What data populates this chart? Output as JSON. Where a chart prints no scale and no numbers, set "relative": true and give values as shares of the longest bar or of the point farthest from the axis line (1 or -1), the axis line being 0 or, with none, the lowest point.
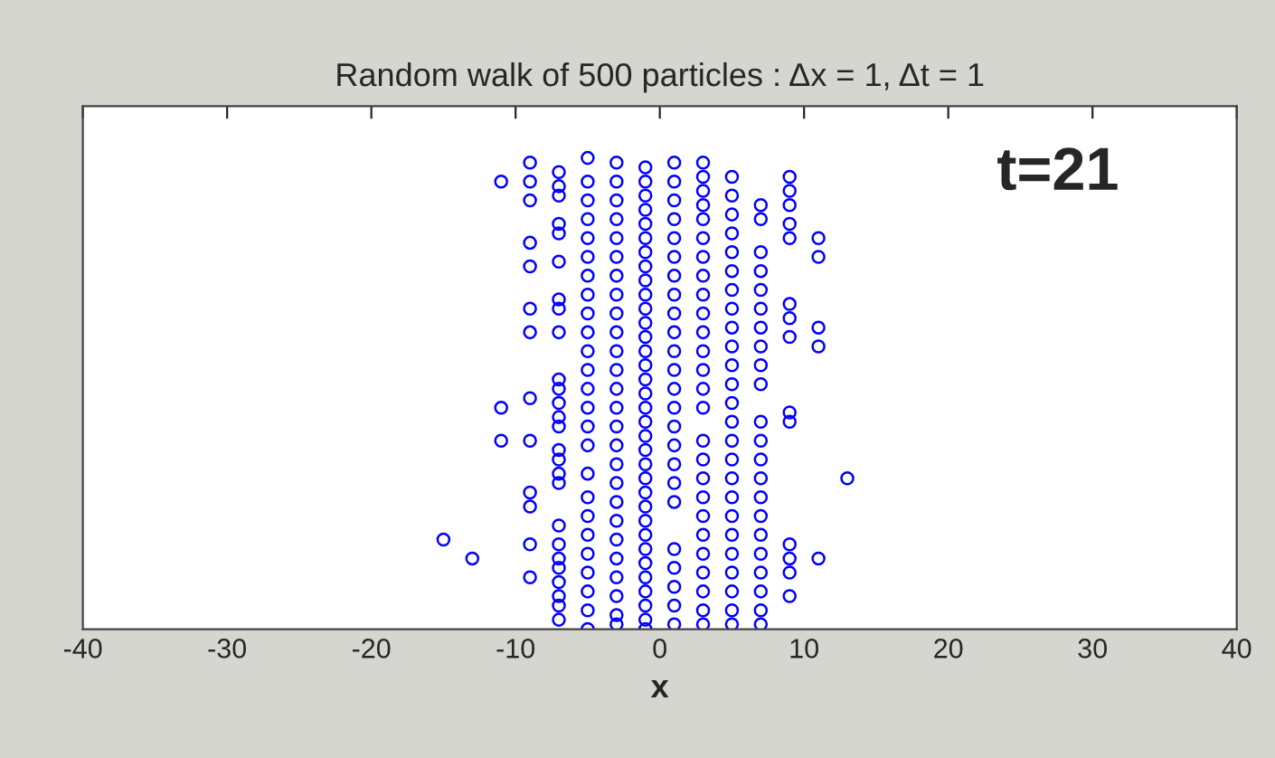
{
  "chart_data": {
    "type": "scatter",
    "title": "Random walk of 500 particles : Δx = 1, Δt = 1",
    "xlabel": "x",
    "annotations": [
      "t=21"
    ],
    "relative": true,
    "xlim": [
      -40,
      40
    ],
    "xticks": [
      -40,
      -30,
      -20,
      -10,
      0,
      10,
      20,
      30,
      40
    ],
    "grid": false,
    "legend": false,
    "marker": "circle",
    "tick_labels": "x",
    "series": [
      {
        "color": "#0000ff",
        "x": [
          -15
        ],
        "values": [
          0.19
        ]
      },
      {
        "color": "#0000ff",
        "x": [
          -13
        ],
        "values": [
          0.15
        ]
      },
      {
        "color": "#0000ff",
        "x": [
          -11,
          -11,
          -11
        ],
        "values": [
          0.95,
          0.47,
          0.4
        ]
      },
      {
        "color": "#0000ff",
        "x": [
          -9,
          -9,
          -9,
          -9,
          -9,
          -9,
          -9,
          -9,
          -9,
          -9,
          -9,
          -9,
          -9
        ],
        "values": [
          0.99,
          0.95,
          0.91,
          0.82,
          0.77,
          0.68,
          0.63,
          0.49,
          0.4,
          0.29,
          0.26,
          0.18,
          0.11
        ]
      },
      {
        "color": "#0000ff",
        "x": [
          -7,
          -7,
          -7,
          -7,
          -7,
          -7,
          -7,
          -7,
          -7,
          -7,
          -7,
          -7,
          -7,
          -7,
          -7,
          -7,
          -7,
          -7,
          -7,
          -7,
          -7,
          -7,
          -7,
          -7,
          -7,
          -7
        ],
        "values": [
          0.97,
          0.94,
          0.92,
          0.86,
          0.84,
          0.78,
          0.7,
          0.68,
          0.63,
          0.53,
          0.51,
          0.48,
          0.45,
          0.43,
          0.38,
          0.36,
          0.33,
          0.31,
          0.22,
          0.18,
          0.15,
          0.13,
          0.1,
          0.07,
          0.05,
          0.02
        ]
      },
      {
        "color": "#0000ff",
        "x": [
          -5,
          -5,
          -5,
          -5,
          -5,
          -5,
          -5,
          -5,
          -5,
          -5,
          -5,
          -5,
          -5,
          -5,
          -5,
          -5,
          -5,
          -5,
          -5,
          -5,
          -5,
          -5,
          -5,
          -5,
          -5
        ],
        "values": [
          1.0,
          0.95,
          0.91,
          0.87,
          0.83,
          0.79,
          0.75,
          0.71,
          0.67,
          0.63,
          0.59,
          0.55,
          0.51,
          0.47,
          0.43,
          0.39,
          0.33,
          0.28,
          0.24,
          0.2,
          0.16,
          0.12,
          0.08,
          0.04,
          0.0
        ]
      },
      {
        "color": "#0000ff",
        "x": [
          -3,
          -3,
          -3,
          -3,
          -3,
          -3,
          -3,
          -3,
          -3,
          -3,
          -3,
          -3,
          -3,
          -3,
          -3,
          -3,
          -3,
          -3,
          -3,
          -3,
          -3,
          -3,
          -3,
          -3,
          -3,
          -3
        ],
        "values": [
          0.99,
          0.95,
          0.91,
          0.87,
          0.83,
          0.79,
          0.75,
          0.71,
          0.67,
          0.63,
          0.59,
          0.55,
          0.51,
          0.47,
          0.43,
          0.39,
          0.35,
          0.31,
          0.27,
          0.23,
          0.19,
          0.15,
          0.11,
          0.07,
          0.03,
          0.01
        ]
      },
      {
        "color": "#0000ff",
        "x": [
          -1,
          -1,
          -1,
          -1,
          -1,
          -1,
          -1,
          -1,
          -1,
          -1,
          -1,
          -1,
          -1,
          -1,
          -1,
          -1,
          -1,
          -1,
          -1,
          -1,
          -1,
          -1,
          -1,
          -1,
          -1,
          -1,
          -1,
          -1,
          -1,
          -1,
          -1,
          -1,
          -1,
          -1
        ],
        "values": [
          0.98,
          0.95,
          0.92,
          0.89,
          0.86,
          0.83,
          0.8,
          0.77,
          0.74,
          0.71,
          0.68,
          0.65,
          0.62,
          0.59,
          0.56,
          0.53,
          0.5,
          0.47,
          0.44,
          0.41,
          0.38,
          0.35,
          0.32,
          0.29,
          0.26,
          0.23,
          0.2,
          0.17,
          0.14,
          0.11,
          0.08,
          0.05,
          0.02,
          0.0
        ]
      },
      {
        "color": "#0000ff",
        "x": [
          1,
          1,
          1,
          1,
          1,
          1,
          1,
          1,
          1,
          1,
          1,
          1,
          1,
          1,
          1,
          1,
          1,
          1,
          1,
          1,
          1,
          1,
          1,
          1
        ],
        "values": [
          0.99,
          0.95,
          0.91,
          0.87,
          0.83,
          0.79,
          0.75,
          0.71,
          0.67,
          0.63,
          0.59,
          0.55,
          0.51,
          0.47,
          0.43,
          0.39,
          0.35,
          0.31,
          0.27,
          0.17,
          0.13,
          0.09,
          0.05,
          0.01
        ]
      },
      {
        "color": "#0000ff",
        "x": [
          3,
          3,
          3,
          3,
          3,
          3,
          3,
          3,
          3,
          3,
          3,
          3,
          3,
          3,
          3,
          3,
          3,
          3,
          3,
          3,
          3,
          3,
          3,
          3,
          3,
          3
        ],
        "values": [
          0.99,
          0.96,
          0.93,
          0.9,
          0.87,
          0.83,
          0.79,
          0.75,
          0.71,
          0.67,
          0.63,
          0.59,
          0.55,
          0.51,
          0.47,
          0.4,
          0.36,
          0.32,
          0.28,
          0.24,
          0.2,
          0.16,
          0.12,
          0.08,
          0.04,
          0.01
        ]
      },
      {
        "color": "#0000ff",
        "x": [
          5,
          5,
          5,
          5,
          5,
          5,
          5,
          5,
          5,
          5,
          5,
          5,
          5,
          5,
          5,
          5,
          5,
          5,
          5,
          5,
          5,
          5,
          5,
          5,
          5
        ],
        "values": [
          0.96,
          0.92,
          0.88,
          0.84,
          0.8,
          0.76,
          0.72,
          0.68,
          0.64,
          0.6,
          0.56,
          0.52,
          0.48,
          0.44,
          0.4,
          0.36,
          0.32,
          0.28,
          0.24,
          0.2,
          0.16,
          0.12,
          0.08,
          0.04,
          0.01
        ]
      },
      {
        "color": "#0000ff",
        "x": [
          7,
          7,
          7,
          7,
          7,
          7,
          7,
          7,
          7,
          7,
          7,
          7,
          7,
          7,
          7,
          7,
          7,
          7,
          7,
          7,
          7,
          7
        ],
        "values": [
          0.9,
          0.87,
          0.8,
          0.76,
          0.72,
          0.68,
          0.64,
          0.6,
          0.56,
          0.52,
          0.44,
          0.4,
          0.36,
          0.32,
          0.28,
          0.24,
          0.2,
          0.16,
          0.12,
          0.08,
          0.04,
          0.01
        ]
      },
      {
        "color": "#0000ff",
        "x": [
          9,
          9,
          9,
          9,
          9,
          9,
          9,
          9,
          9,
          9,
          9,
          9,
          9,
          9
        ],
        "values": [
          0.96,
          0.93,
          0.9,
          0.86,
          0.83,
          0.69,
          0.66,
          0.62,
          0.46,
          0.44,
          0.18,
          0.15,
          0.12,
          0.07
        ]
      },
      {
        "color": "#0000ff",
        "x": [
          11,
          11,
          11,
          11,
          11
        ],
        "values": [
          0.83,
          0.79,
          0.64,
          0.6,
          0.15
        ]
      },
      {
        "color": "#0000ff",
        "x": [
          13
        ],
        "values": [
          0.32
        ]
      }
    ]
  }
}
